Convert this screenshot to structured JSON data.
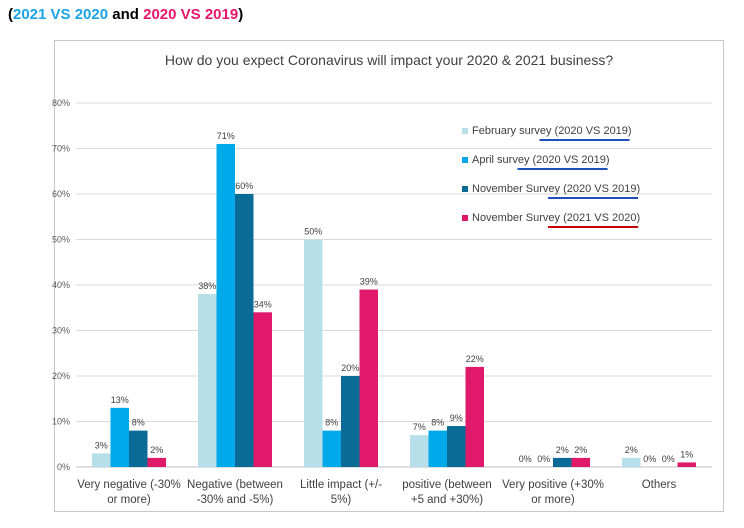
{
  "header": {
    "part1": "2021 VS 2020",
    "connector": " and ",
    "part2": "2020 VS 2019",
    "color1": "#1aa3e8",
    "color2": "#e8166a",
    "paren_open": "(",
    "paren_close": ")"
  },
  "chart_data": {
    "type": "bar",
    "title": "How do you expect Coronavirus will impact your 2020 & 2021 business?",
    "xlabel": "",
    "ylabel": "",
    "ylim": [
      0,
      80
    ],
    "yticks": [
      "0%",
      "10%",
      "20%",
      "30%",
      "40%",
      "50%",
      "60%",
      "70%",
      "80%"
    ],
    "grid": true,
    "legend_position": "top-right",
    "categories": [
      [
        "Very negative (-30%",
        "or more)"
      ],
      [
        "Negative (between",
        "-30% and -5%)"
      ],
      [
        "Little impact (+/-",
        "5%)"
      ],
      [
        "positive (between",
        "+5 and +30%)"
      ],
      [
        "Very positive (+30%",
        "or more)"
      ],
      [
        "Others"
      ]
    ],
    "series": [
      {
        "name": "February survey (2020 VS 2019)",
        "color": "#b7dfe9",
        "underline": "#1f4fbf",
        "values": [
          3,
          38,
          50,
          7,
          0,
          2
        ],
        "labels": [
          "3%",
          "38%",
          "50%",
          "7%",
          "0%",
          "2%"
        ]
      },
      {
        "name": "April survey (2020 VS 2019)",
        "color": "#00aaea",
        "underline": "#1f4fbf",
        "values": [
          13,
          71,
          8,
          8,
          0,
          0
        ],
        "labels": [
          "13%",
          "71%",
          "8%",
          "8%",
          "0%",
          "0%"
        ]
      },
      {
        "name": "November Survey (2020 VS 2019)",
        "color": "#0a6b96",
        "underline": "#1f4fbf",
        "values": [
          8,
          60,
          20,
          9,
          2,
          0
        ],
        "labels": [
          "8%",
          "60%",
          "20%",
          "9%",
          "2%",
          "0%"
        ]
      },
      {
        "name": "November Survey (2021 VS 2020)",
        "color": "#e0196b",
        "underline": "#c00000",
        "values": [
          2,
          34,
          39,
          22,
          2,
          1
        ],
        "labels": [
          "2%",
          "34%",
          "39%",
          "22%",
          "2%",
          "1%"
        ]
      }
    ]
  }
}
